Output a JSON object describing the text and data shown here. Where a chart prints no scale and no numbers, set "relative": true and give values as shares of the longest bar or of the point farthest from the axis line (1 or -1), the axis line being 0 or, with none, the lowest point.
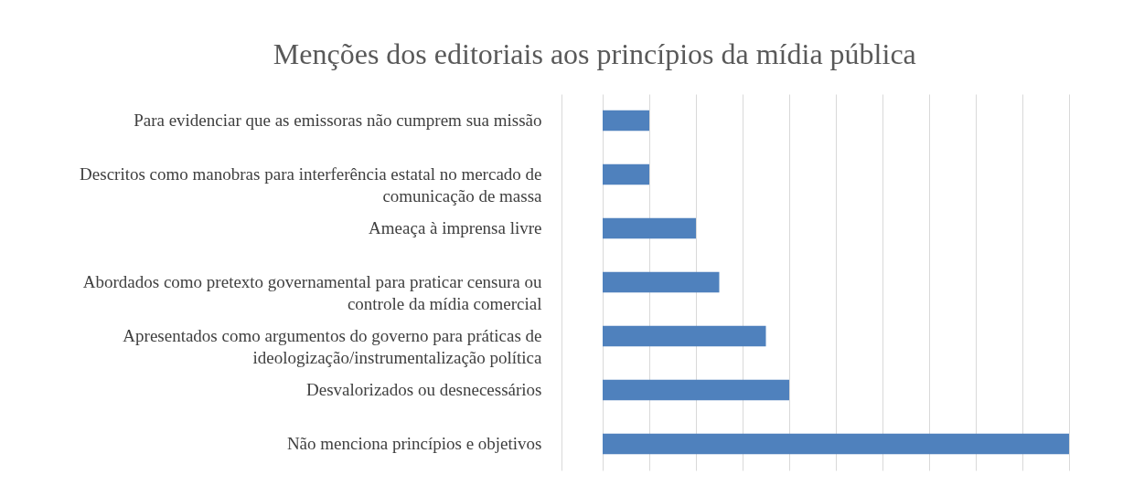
{
  "chart_data": {
    "type": "bar",
    "orientation": "horizontal",
    "relative": true,
    "title": "Menções dos editoriais aos princípios da mídia pública",
    "categories": [
      "Para evidenciar que as emissoras não cumprem sua missão",
      "Descritos como manobras para interferência estatal no mercado de comunicação de massa",
      "Ameaça à imprensa livre",
      "Abordados como pretexto governamental para praticar censura ou controle da mídia comercial",
      "Apresentados como argumentos do governo para práticas de ideologização/instrumentalização política",
      "Desvalorizados ou desnecessários",
      "Não menciona princípios e objetivos"
    ],
    "values": [
      0.1,
      0.1,
      0.2,
      0.25,
      0.35,
      0.4,
      1
    ],
    "color": "#4f81bd",
    "grid": "x"
  }
}
